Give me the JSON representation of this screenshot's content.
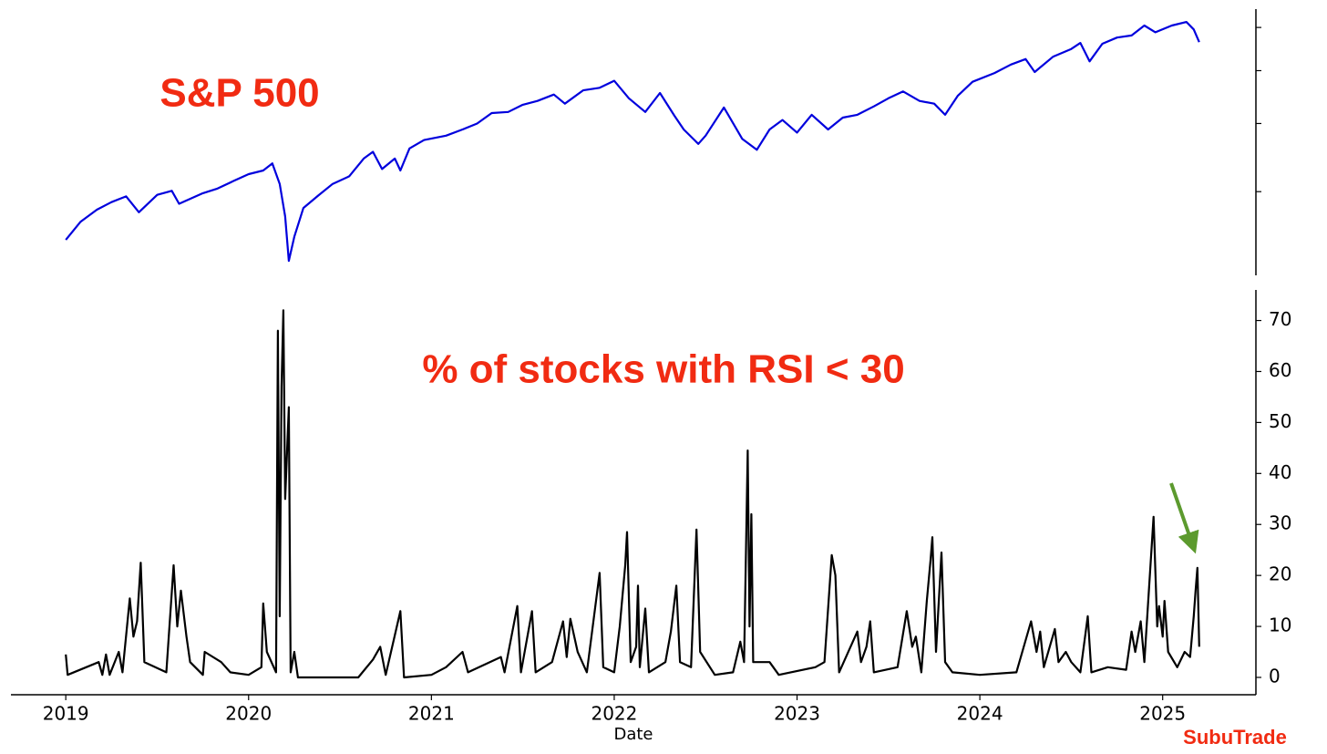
{
  "chart_data": [
    {
      "type": "line",
      "title": "S&P 500",
      "log_scale": true,
      "tick_labels": false,
      "xlim": [
        2018.7,
        2025.51
      ],
      "ylim": [
        2107,
        6483
      ],
      "yticks": [
        3000,
        4000,
        5000,
        6000
      ],
      "x": [
        2019.0,
        2019.08,
        2019.17,
        2019.25,
        2019.33,
        2019.4,
        2019.5,
        2019.58,
        2019.62,
        2019.75,
        2019.83,
        2019.92,
        2020.0,
        2020.08,
        2020.13,
        2020.17,
        2020.2,
        2020.22,
        2020.25,
        2020.3,
        2020.38,
        2020.46,
        2020.55,
        2020.63,
        2020.68,
        2020.73,
        2020.8,
        2020.83,
        2020.88,
        2020.96,
        2021.08,
        2021.17,
        2021.25,
        2021.33,
        2021.42,
        2021.5,
        2021.58,
        2021.67,
        2021.73,
        2021.83,
        2021.92,
        2022.0,
        2022.08,
        2022.17,
        2022.25,
        2022.33,
        2022.38,
        2022.46,
        2022.5,
        2022.6,
        2022.7,
        2022.78,
        2022.85,
        2022.92,
        2023.0,
        2023.08,
        2023.17,
        2023.25,
        2023.33,
        2023.42,
        2023.5,
        2023.58,
        2023.67,
        2023.75,
        2023.81,
        2023.88,
        2023.96,
        2024.08,
        2024.17,
        2024.25,
        2024.3,
        2024.4,
        2024.5,
        2024.55,
        2024.6,
        2024.67,
        2024.75,
        2024.83,
        2024.9,
        2024.96,
        2025.05,
        2025.13,
        2025.17,
        2025.2
      ],
      "series": [
        {
          "name": "S&P 500",
          "color": "#0000dd",
          "values": [
            2447,
            2640,
            2780,
            2870,
            2940,
            2750,
            2960,
            3010,
            2850,
            2980,
            3040,
            3140,
            3230,
            3280,
            3380,
            3100,
            2700,
            2240,
            2480,
            2800,
            2950,
            3100,
            3200,
            3450,
            3550,
            3300,
            3450,
            3280,
            3600,
            3730,
            3800,
            3900,
            4000,
            4180,
            4200,
            4330,
            4400,
            4520,
            4350,
            4600,
            4650,
            4790,
            4450,
            4200,
            4550,
            4130,
            3900,
            3670,
            3800,
            4280,
            3750,
            3580,
            3900,
            4060,
            3850,
            4150,
            3900,
            4100,
            4150,
            4300,
            4450,
            4580,
            4400,
            4350,
            4150,
            4500,
            4770,
            4950,
            5130,
            5250,
            4970,
            5300,
            5480,
            5620,
            5200,
            5600,
            5750,
            5800,
            6050,
            5880,
            6050,
            6140,
            5950,
            5640
          ]
        }
      ]
    },
    {
      "type": "line",
      "title": "% of stocks with RSI < 30",
      "xlabel": "Date",
      "xlim": [
        2018.7,
        2025.51
      ],
      "xticks": [
        2019,
        2020,
        2021,
        2022,
        2023,
        2024,
        2025
      ],
      "ylim": [
        -3.4,
        76
      ],
      "yticks": [
        0,
        10,
        20,
        30,
        40,
        50,
        60,
        70
      ],
      "x": [
        2019.0,
        2019.01,
        2019.18,
        2019.2,
        2019.22,
        2019.24,
        2019.29,
        2019.31,
        2019.35,
        2019.37,
        2019.39,
        2019.41,
        2019.43,
        2019.55,
        2019.59,
        2019.61,
        2019.63,
        2019.66,
        2019.68,
        2019.75,
        2019.76,
        2019.85,
        2019.9,
        2020.0,
        2020.07,
        2020.08,
        2020.1,
        2020.15,
        2020.16,
        2020.17,
        2020.18,
        2020.19,
        2020.2,
        2020.22,
        2020.23,
        2020.25,
        2020.27,
        2020.6,
        2020.68,
        2020.72,
        2020.75,
        2020.83,
        2020.85,
        2021.0,
        2021.08,
        2021.17,
        2021.2,
        2021.38,
        2021.4,
        2021.47,
        2021.49,
        2021.55,
        2021.57,
        2021.66,
        2021.72,
        2021.74,
        2021.76,
        2021.8,
        2021.85,
        2021.92,
        2021.94,
        2022.0,
        2022.03,
        2022.06,
        2022.07,
        2022.09,
        2022.12,
        2022.13,
        2022.14,
        2022.17,
        2022.19,
        2022.28,
        2022.31,
        2022.34,
        2022.36,
        2022.42,
        2022.45,
        2022.47,
        2022.55,
        2022.65,
        2022.69,
        2022.71,
        2022.73,
        2022.74,
        2022.75,
        2022.76,
        2022.85,
        2022.9,
        2023.1,
        2023.15,
        2023.19,
        2023.21,
        2023.23,
        2023.33,
        2023.35,
        2023.38,
        2023.4,
        2023.42,
        2023.55,
        2023.6,
        2023.63,
        2023.65,
        2023.68,
        2023.71,
        2023.73,
        2023.74,
        2023.76,
        2023.79,
        2023.81,
        2023.85,
        2024.0,
        2024.2,
        2024.28,
        2024.31,
        2024.33,
        2024.35,
        2024.41,
        2024.43,
        2024.47,
        2024.5,
        2024.55,
        2024.59,
        2024.61,
        2024.7,
        2024.8,
        2024.83,
        2024.85,
        2024.88,
        2024.9,
        2024.95,
        2024.97,
        2024.98,
        2025.0,
        2025.01,
        2025.03,
        2025.08,
        2025.12,
        2025.15,
        2025.17,
        2025.18,
        2025.19,
        2025.2
      ],
      "series": [
        {
          "name": "% of stocks with RSI < 30",
          "color": "#000000",
          "values": [
            4.5,
            0.5,
            3,
            0.5,
            4.5,
            0.5,
            5,
            1,
            15.5,
            8,
            11,
            22.5,
            3,
            1,
            22,
            10,
            17,
            8,
            3,
            0.5,
            5,
            3,
            1,
            0.5,
            2,
            14.5,
            5,
            1,
            68,
            12,
            57,
            72,
            35,
            53,
            1,
            5,
            0,
            0,
            3.5,
            6,
            0.5,
            13,
            0,
            0.5,
            2,
            5,
            1,
            4,
            1,
            14,
            1,
            13,
            1,
            3,
            11,
            4,
            11.5,
            5,
            1,
            20.5,
            2,
            1,
            10,
            22,
            28.5,
            3,
            6,
            18,
            2,
            13.5,
            1,
            3,
            9,
            18,
            3,
            2,
            29,
            5,
            0.5,
            1,
            7,
            3,
            44.5,
            10,
            32,
            3,
            3,
            0.5,
            2,
            3,
            24,
            20,
            1,
            9,
            3,
            6,
            11,
            1,
            2,
            13,
            6,
            8,
            1,
            15,
            23,
            27.5,
            5,
            24.5,
            3,
            1,
            0.5,
            1,
            11,
            5,
            9,
            2,
            9.5,
            3,
            5,
            3,
            1,
            12,
            1,
            2,
            1.5,
            9,
            5,
            11,
            3,
            31.5,
            10,
            14,
            8,
            15,
            5,
            2,
            5,
            4,
            12,
            17,
            21.5,
            6
          ]
        }
      ]
    }
  ],
  "credit": "SubuTrade"
}
